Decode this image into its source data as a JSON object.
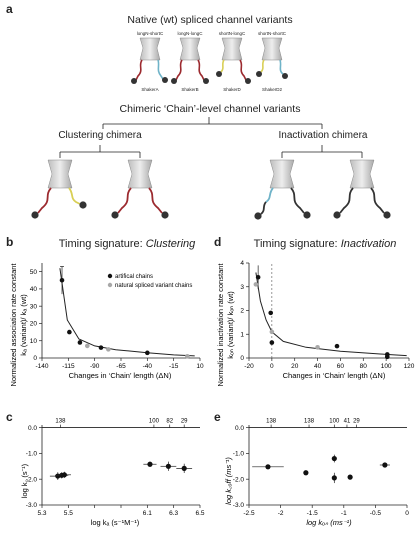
{
  "panels": {
    "a": "a",
    "b": "b",
    "c": "c",
    "d": "d",
    "e": "e"
  },
  "section_a": {
    "native_title": "Native (wt) spliced channel variants",
    "native_variants": [
      {
        "top": "longN-shortC",
        "bottom": "ShakerA"
      },
      {
        "top": "longN-longC",
        "bottom": "ShakerB"
      },
      {
        "top": "shortN-longC",
        "bottom": "ShakerD"
      },
      {
        "top": "shortN-shortC",
        "bottom": "ShakerD2"
      }
    ],
    "chimeric_title": "Chimeric ‘Chain’-level channel variants",
    "clustering_title": "Clustering chimera",
    "inactivation_title": "Inactivation chimera"
  },
  "colors": {
    "red": "#9c2a2f",
    "blue": "#6fb3c8",
    "yellow": "#d9cf55",
    "dark": "#333333",
    "gray": "#a8a8a8"
  },
  "panel_b": {
    "title_prefix": "Timing signature: ",
    "title_em": "Clustering",
    "ylabel_1": "Normalized association rate constant",
    "ylabel_2": "kₐ (variant)/ kₐ (wt)",
    "xlabel": "Changes in ‘Chain’ length (ΔN)",
    "legend": [
      "artifical chains",
      "natural spliced variant chains"
    ]
  },
  "panel_d": {
    "title_prefix": "Timing signature: ",
    "title_em": "Inactivation",
    "ylabel_1": "Normalized inactivation rate constant",
    "ylabel_2": "kₒₙ (variant)/ kₒₙ (wt)",
    "xlabel": "Changes in ‘Chain’ length (ΔN)"
  },
  "panel_c": {
    "ylabel": "log k꜀ (s⁻¹)",
    "xlabel": "log kₐ (s⁻¹M⁻¹)"
  },
  "panel_e": {
    "ylabel": "log k꜀ₒff (ms⁻¹)",
    "xlabel": "log kₒₙ (ms⁻¹)"
  },
  "chart_data": [
    {
      "id": "b",
      "type": "scatter",
      "xlim": [
        -140,
        10
      ],
      "ylim": [
        0,
        55
      ],
      "xticks": [
        -140,
        -115,
        -90,
        -65,
        -40,
        -15,
        10
      ],
      "yticks": [
        0,
        10,
        20,
        30,
        40,
        50
      ],
      "series": [
        {
          "name": "artifical chains",
          "color": "#111111",
          "points": [
            {
              "x": -121,
              "y": 45,
              "err": 8
            },
            {
              "x": -114,
              "y": 15
            },
            {
              "x": -104,
              "y": 9
            },
            {
              "x": -84,
              "y": 6
            },
            {
              "x": -40,
              "y": 3
            }
          ]
        },
        {
          "name": "natural spliced variant chains",
          "color": "#a8a8a8",
          "points": [
            {
              "x": -97,
              "y": 7
            },
            {
              "x": -77,
              "y": 5
            },
            {
              "x": -2,
              "y": 1
            }
          ]
        }
      ],
      "fit": [
        [
          -123,
          52
        ],
        [
          -116,
          22
        ],
        [
          -105,
          11
        ],
        [
          -90,
          7
        ],
        [
          -70,
          4.8
        ],
        [
          -40,
          3
        ],
        [
          -15,
          1.8
        ],
        [
          5,
          1.2
        ]
      ]
    },
    {
      "id": "d",
      "type": "scatter",
      "xlim": [
        -20,
        120
      ],
      "ylim": [
        0,
        4
      ],
      "xticks": [
        -20,
        0,
        20,
        40,
        60,
        80,
        100,
        120
      ],
      "yticks": [
        0,
        1,
        2,
        3,
        4
      ],
      "series": [
        {
          "name": "artifical chains",
          "color": "#111111",
          "points": [
            {
              "x": -12,
              "y": 3.4,
              "err": 0.5
            },
            {
              "x": -1,
              "y": 1.9
            },
            {
              "x": 0,
              "y": 0.65
            },
            {
              "x": 57,
              "y": 0.5
            },
            {
              "x": 101,
              "y": 0.15
            },
            {
              "x": 101,
              "y": 0.05
            }
          ]
        },
        {
          "name": "natural spliced variant chains",
          "color": "#a8a8a8",
          "points": [
            {
              "x": -14,
              "y": 3.1
            },
            {
              "x": 0,
              "y": 1.1
            },
            {
              "x": 40,
              "y": 0.45
            }
          ]
        }
      ],
      "fit": [
        [
          -14,
          3.6
        ],
        [
          -10,
          2.4
        ],
        [
          -5,
          1.6
        ],
        [
          0,
          1.1
        ],
        [
          10,
          0.7
        ],
        [
          30,
          0.45
        ],
        [
          60,
          0.28
        ],
        [
          100,
          0.15
        ],
        [
          118,
          0.1
        ]
      ]
    },
    {
      "id": "c",
      "type": "scatter",
      "xlim": [
        5.3,
        6.5
      ],
      "ylim": [
        -3.0,
        0.1
      ],
      "xticks": [
        5.3,
        5.5,
        5.7,
        5.9,
        6.1,
        6.3,
        6.5
      ],
      "xtick_labels": [
        "5.3",
        "5.5",
        "",
        "",
        "6.1",
        "6.3",
        "6.5"
      ],
      "yticks": [
        0.0,
        -1.0,
        -2.0,
        -3.0
      ],
      "ytick_labels": [
        "0.0",
        "-1.0",
        "-2.0",
        "-3.0"
      ],
      "top_labels": [
        {
          "x": 5.44,
          "label": "138"
        },
        {
          "x": 6.15,
          "label": "100"
        },
        {
          "x": 6.27,
          "label": "82"
        },
        {
          "x": 6.38,
          "label": "29"
        }
      ],
      "points": [
        {
          "x": 5.42,
          "y": -1.88,
          "xerr": 0.06,
          "yerr": 0.15
        },
        {
          "x": 5.45,
          "y": -1.85,
          "xerr": 0.05,
          "yerr": 0.12
        },
        {
          "x": 5.47,
          "y": -1.83,
          "xerr": 0.05,
          "yerr": 0.12
        },
        {
          "x": 6.12,
          "y": -1.42,
          "xerr": 0.05,
          "yerr": 0.1
        },
        {
          "x": 6.26,
          "y": -1.5,
          "xerr": 0.06,
          "yerr": 0.18
        },
        {
          "x": 6.38,
          "y": -1.58,
          "xerr": 0.06,
          "yerr": 0.18
        }
      ]
    },
    {
      "id": "e",
      "type": "scatter",
      "xlim": [
        -2.5,
        0
      ],
      "ylim": [
        -3.0,
        0.1
      ],
      "xticks": [
        -2.5,
        -2,
        -1.5,
        -1,
        -0.5,
        0
      ],
      "xtick_labels": [
        "-2.5",
        "-2",
        "-1.5",
        "-1",
        "-0.5",
        "0"
      ],
      "yticks": [
        0.0,
        -1.0,
        -2.0,
        -3.0
      ],
      "ytick_labels": [
        "0.0",
        "-1.0",
        "-2.0",
        "-3.0"
      ],
      "top_labels": [
        {
          "x": -2.15,
          "label": "138"
        },
        {
          "x": -1.55,
          "label": "138"
        },
        {
          "x": -1.15,
          "label": "100"
        },
        {
          "x": -0.95,
          "label": "41"
        },
        {
          "x": -0.8,
          "label": "29"
        }
      ],
      "points": [
        {
          "x": -2.2,
          "y": -1.52,
          "xerr": 0.25
        },
        {
          "x": -1.6,
          "y": -1.75
        },
        {
          "x": -1.15,
          "y": -1.2,
          "yerr": 0.15
        },
        {
          "x": -1.15,
          "y": -1.95,
          "yerr": 0.2
        },
        {
          "x": -0.9,
          "y": -1.92
        },
        {
          "x": -0.35,
          "y": -1.45,
          "xerr": 0.08
        }
      ]
    }
  ]
}
